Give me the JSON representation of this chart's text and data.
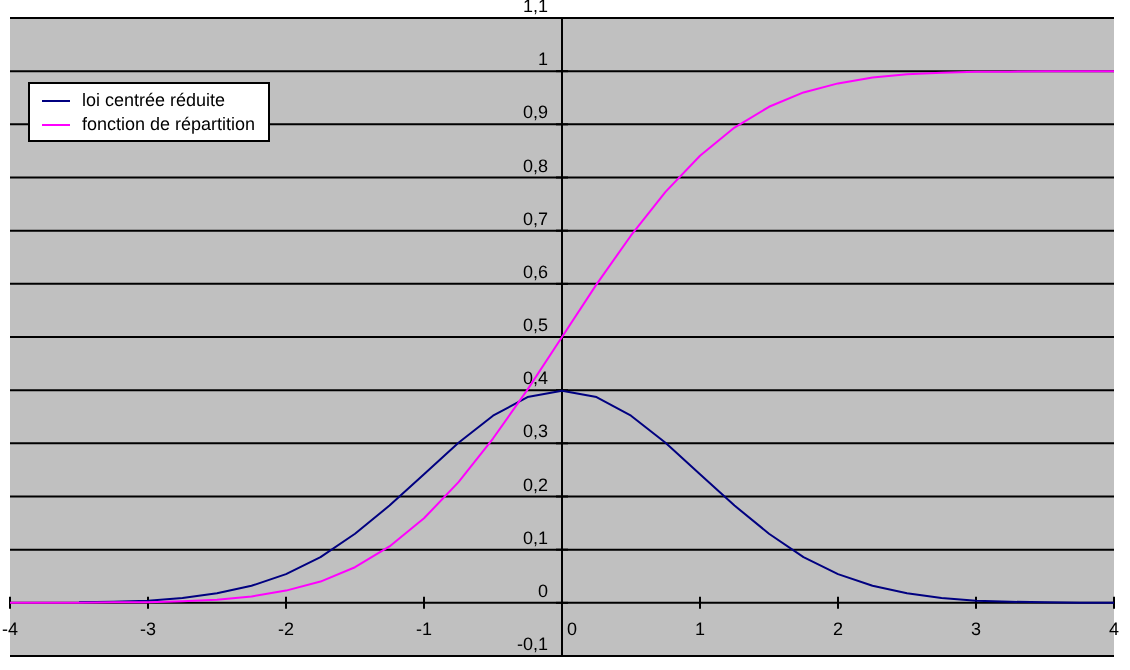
{
  "chart_data": {
    "type": "line",
    "x": [
      -4,
      -3.75,
      -3.5,
      -3.25,
      -3,
      -2.75,
      -2.5,
      -2.25,
      -2,
      -1.75,
      -1.5,
      -1.25,
      -1,
      -0.75,
      -0.5,
      -0.25,
      0,
      0.25,
      0.5,
      0.75,
      1,
      1.25,
      1.5,
      1.75,
      2,
      2.25,
      2.5,
      2.75,
      3,
      3.25,
      3.5,
      3.75,
      4
    ],
    "series": [
      {
        "name": "loi centrée réduite",
        "color": "#000080",
        "values": [
          null,
          null,
          0.001,
          0.002,
          0.004,
          0.009,
          0.018,
          0.032,
          0.054,
          0.086,
          0.13,
          0.183,
          0.242,
          0.301,
          0.352,
          0.387,
          0.399,
          0.387,
          0.352,
          0.301,
          0.242,
          0.183,
          0.13,
          0.086,
          0.054,
          0.032,
          0.018,
          0.009,
          0.004,
          0.002,
          0.001,
          0,
          0
        ]
      },
      {
        "name": "fonction de répartition",
        "color": "#ff00ff",
        "values": [
          0,
          0,
          0,
          0.001,
          0.001,
          0.003,
          0.006,
          0.012,
          0.023,
          0.04,
          0.067,
          0.106,
          0.159,
          0.227,
          0.309,
          0.401,
          0.5,
          0.599,
          0.691,
          0.773,
          0.841,
          0.894,
          0.933,
          0.96,
          0.977,
          0.988,
          0.994,
          0.997,
          0.999,
          0.999,
          1,
          1,
          1
        ]
      }
    ],
    "xlim": [
      -4,
      4
    ],
    "xticks": [
      -4,
      -3,
      -2,
      -1,
      0,
      1,
      2,
      3,
      4
    ],
    "ylim": [
      -0.1,
      1.1
    ],
    "yticks": [
      {
        "value": -0.1,
        "label": "-0,1"
      },
      0,
      {
        "value": 0.1,
        "label": "0,1"
      },
      {
        "value": 0.2,
        "label": "0,2"
      },
      {
        "value": 0.3,
        "label": "0,3"
      },
      {
        "value": 0.4,
        "label": "0,4"
      },
      {
        "value": 0.5,
        "label": "0,5"
      },
      {
        "value": 0.6,
        "label": "0,6"
      },
      {
        "value": 0.7,
        "label": "0,7"
      },
      {
        "value": 0.8,
        "label": "0,8"
      },
      {
        "value": 0.9,
        "label": "0,9"
      },
      1,
      {
        "value": 1.1,
        "label": "1,1"
      }
    ],
    "grid": "y",
    "legend": "top left",
    "marker": "none"
  }
}
